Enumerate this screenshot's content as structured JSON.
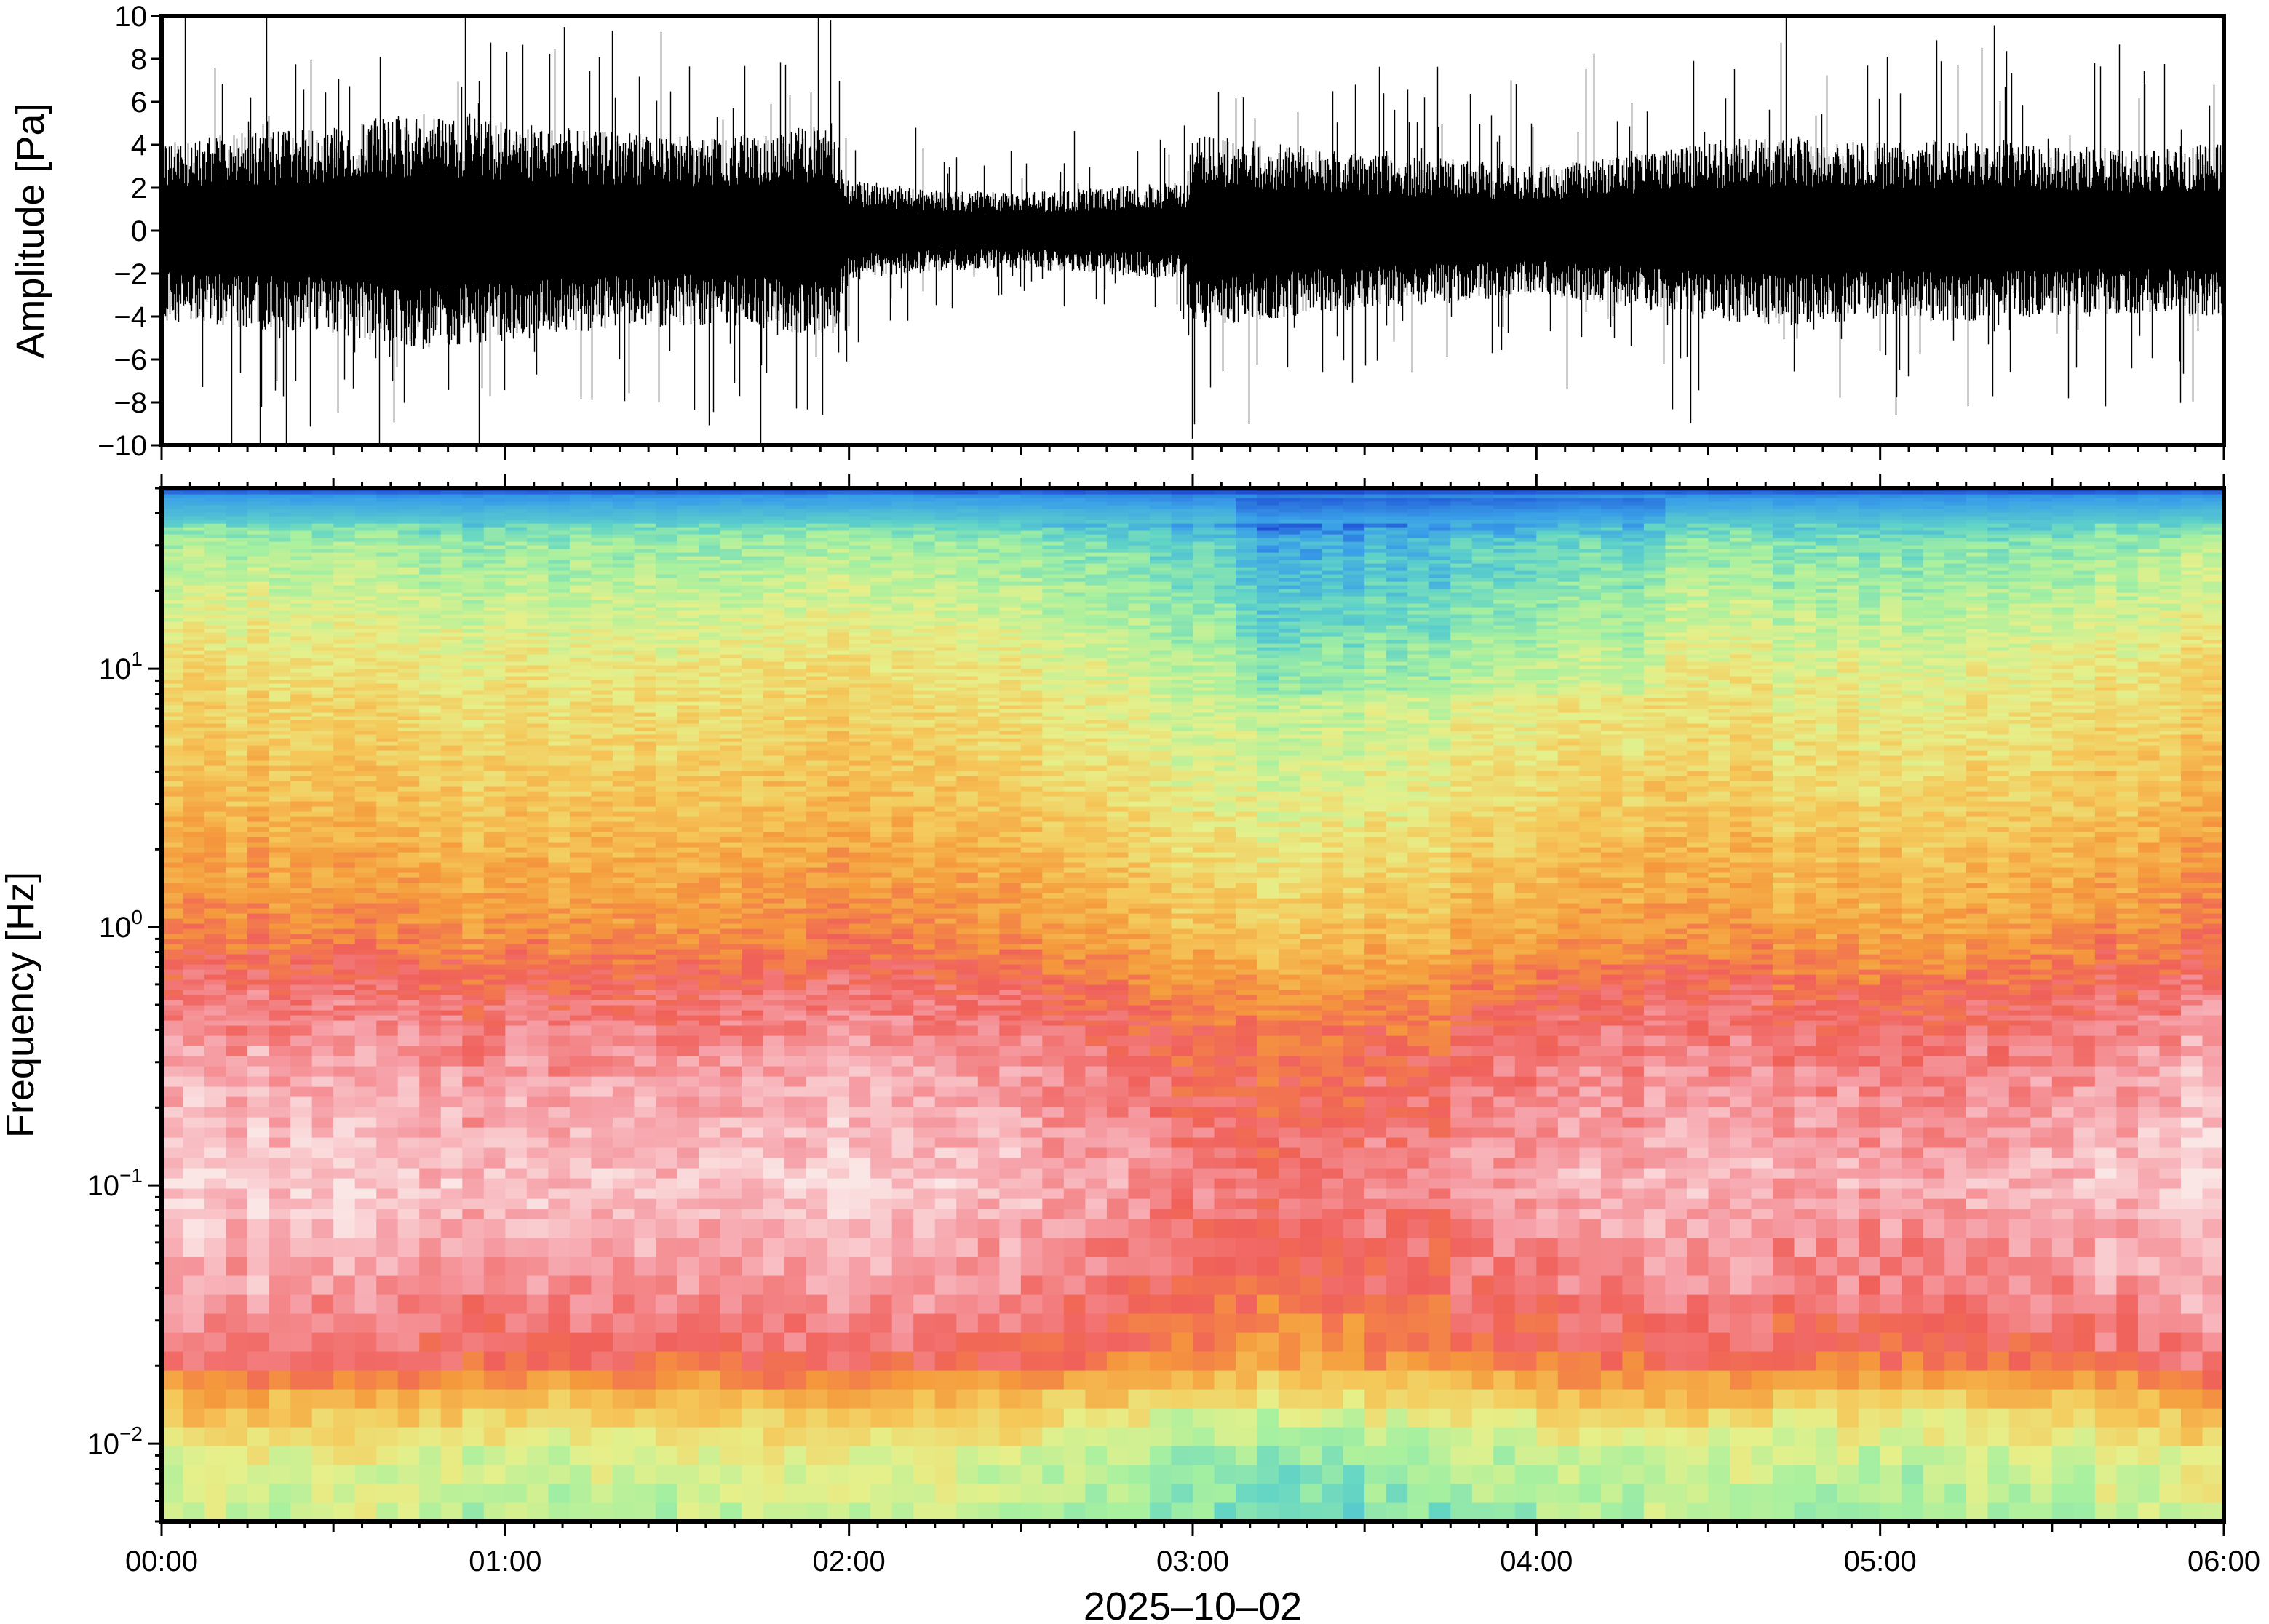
{
  "chart_data": [
    {
      "type": "line",
      "panel": "waveform",
      "ylabel": "Amplitude [Pa]",
      "ylim": [
        -10,
        10
      ],
      "yticks": [
        -10,
        -8,
        -6,
        -4,
        -2,
        0,
        2,
        4,
        6,
        8,
        10
      ],
      "ytick_labels": [
        "−10",
        "−8",
        "−6",
        "−4",
        "−2",
        "0",
        "2",
        "4",
        "6",
        "8",
        "10"
      ],
      "x_range": [
        "00:00",
        "06:00"
      ],
      "color": "#000000",
      "envelope": {
        "x_hours": [
          0.0,
          0.25,
          0.5,
          0.75,
          1.0,
          1.25,
          1.5,
          1.75,
          1.95,
          2.0,
          2.25,
          2.5,
          2.75,
          2.98,
          3.0,
          3.25,
          3.5,
          3.75,
          4.0,
          4.25,
          4.5,
          4.75,
          5.0,
          5.25,
          5.5,
          5.75,
          6.0
        ],
        "typical_amplitude_pa": [
          3.5,
          3.8,
          4.0,
          4.6,
          4.3,
          3.9,
          3.7,
          3.8,
          4.2,
          2.0,
          1.6,
          1.5,
          1.7,
          1.9,
          3.8,
          3.4,
          3.0,
          2.8,
          2.5,
          2.9,
          3.5,
          3.7,
          3.4,
          3.6,
          3.3,
          3.2,
          3.4
        ]
      }
    },
    {
      "type": "heatmap",
      "panel": "spectrogram",
      "ylabel": "Frequency [Hz]",
      "xlabel": "2025–10–02",
      "yscale": "log",
      "ylim_hz": [
        0.005,
        50
      ],
      "yticks_hz": [
        0.01,
        0.1,
        1,
        10
      ],
      "ytick_labels": [
        {
          "base": "10",
          "exp": "−2"
        },
        {
          "base": "10",
          "exp": "−1"
        },
        {
          "base": "10",
          "exp": "0"
        },
        {
          "base": "10",
          "exp": "1"
        }
      ],
      "xticks": [
        "00:00",
        "01:00",
        "02:00",
        "03:00",
        "04:00",
        "05:00",
        "06:00"
      ],
      "colormap": [
        "#0a0a55",
        "#1f50d6",
        "#3aa0e8",
        "#5fd3c8",
        "#a6f0a0",
        "#e6f08a",
        "#f5c85a",
        "#f59a3c",
        "#f0605a",
        "#f6a0a8",
        "#fbe6e6"
      ],
      "band_profile": {
        "freq_hz": [
          0.005,
          0.008,
          0.013,
          0.02,
          0.04,
          0.1,
          0.25,
          0.5,
          1.0,
          3.0,
          10.0,
          30.0,
          46.0,
          50.0
        ],
        "level": [
          0.42,
          0.45,
          0.58,
          0.78,
          0.86,
          0.92,
          0.87,
          0.8,
          0.68,
          0.58,
          0.5,
          0.36,
          0.18,
          0.02
        ]
      }
    }
  ]
}
